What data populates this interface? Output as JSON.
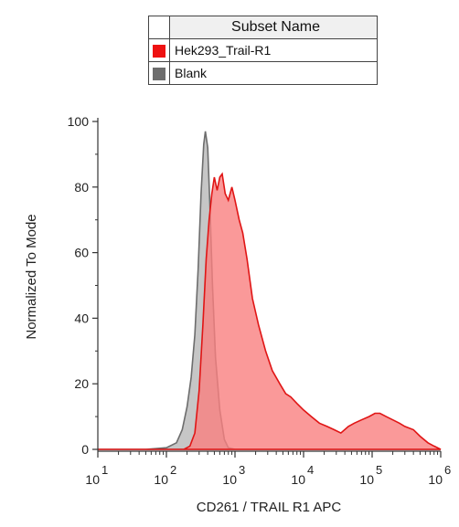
{
  "legend": {
    "header": "Subset Name",
    "entries": [
      {
        "label": "Hek293_Trail-R1",
        "color": "#ee1111"
      },
      {
        "label": "Blank",
        "color": "#6d6d6d"
      }
    ]
  },
  "chart_data": {
    "type": "area",
    "xlabel": "CD261 / TRAIL R1 APC",
    "ylabel": "Normalized To Mode",
    "x_scale": "log",
    "xlim": [
      10,
      1000000
    ],
    "ylim": [
      0,
      100
    ],
    "x_ticks": [
      {
        "value": 10,
        "base": "10",
        "exp": "1"
      },
      {
        "value": 100,
        "base": "10",
        "exp": "2"
      },
      {
        "value": 1000,
        "base": "10",
        "exp": "3"
      },
      {
        "value": 10000,
        "base": "10",
        "exp": "4"
      },
      {
        "value": 100000,
        "base": "10",
        "exp": "5"
      },
      {
        "value": 1000000,
        "base": "10",
        "exp": "6"
      }
    ],
    "y_ticks": [
      "0",
      "20",
      "40",
      "60",
      "80",
      "100"
    ],
    "series": [
      {
        "name": "Blank",
        "fill": "#b8b8b8",
        "stroke": "#6d6d6d",
        "points": [
          [
            10,
            0
          ],
          [
            50,
            0
          ],
          [
            100,
            0.5
          ],
          [
            140,
            2
          ],
          [
            170,
            6
          ],
          [
            200,
            13
          ],
          [
            230,
            22
          ],
          [
            260,
            35
          ],
          [
            290,
            55
          ],
          [
            320,
            78
          ],
          [
            350,
            93
          ],
          [
            370,
            97
          ],
          [
            400,
            92
          ],
          [
            430,
            75
          ],
          [
            470,
            50
          ],
          [
            520,
            28
          ],
          [
            600,
            12
          ],
          [
            700,
            3
          ],
          [
            800,
            0.5
          ],
          [
            1000,
            0
          ],
          [
            1000000,
            0
          ]
        ]
      },
      {
        "name": "Hek293_Trail-R1",
        "fill": "#f98080",
        "stroke": "#e01515",
        "points": [
          [
            10,
            0
          ],
          [
            180,
            0
          ],
          [
            220,
            1
          ],
          [
            260,
            5
          ],
          [
            300,
            18
          ],
          [
            340,
            38
          ],
          [
            380,
            58
          ],
          [
            420,
            70
          ],
          [
            460,
            78
          ],
          [
            500,
            83
          ],
          [
            550,
            79
          ],
          [
            600,
            83
          ],
          [
            650,
            84
          ],
          [
            720,
            78
          ],
          [
            800,
            76
          ],
          [
            900,
            80
          ],
          [
            1000,
            76
          ],
          [
            1150,
            70
          ],
          [
            1300,
            66
          ],
          [
            1500,
            58
          ],
          [
            1800,
            46
          ],
          [
            2200,
            38
          ],
          [
            2800,
            30
          ],
          [
            3500,
            24
          ],
          [
            4500,
            20
          ],
          [
            5500,
            17
          ],
          [
            6500,
            16
          ],
          [
            8000,
            14
          ],
          [
            10000,
            12
          ],
          [
            13000,
            10
          ],
          [
            17000,
            8
          ],
          [
            22000,
            7
          ],
          [
            28000,
            6
          ],
          [
            35000,
            5
          ],
          [
            45000,
            7
          ],
          [
            55000,
            8
          ],
          [
            70000,
            9
          ],
          [
            90000,
            10
          ],
          [
            110000,
            11
          ],
          [
            130000,
            11
          ],
          [
            160000,
            10
          ],
          [
            200000,
            9
          ],
          [
            250000,
            8
          ],
          [
            300000,
            7
          ],
          [
            400000,
            6
          ],
          [
            500000,
            4
          ],
          [
            650000,
            2
          ],
          [
            800000,
            1
          ],
          [
            1000000,
            0
          ]
        ]
      }
    ]
  }
}
